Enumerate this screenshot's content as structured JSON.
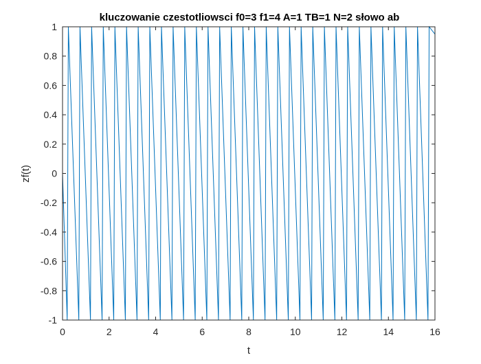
{
  "chart_data": {
    "type": "line",
    "title": "kluczowanie czestotliowsci  f0=3 f1=4 A=1 TB=1 N=2 słowo ab",
    "xlabel": "t",
    "ylabel": "zf(t)",
    "xlim": [
      0,
      16
    ],
    "ylim": [
      -1,
      1
    ],
    "xticks": [
      0,
      2,
      4,
      6,
      8,
      10,
      12,
      14,
      16
    ],
    "xtick_labels": [
      "0",
      "2",
      "4",
      "6",
      "8",
      "10",
      "12",
      "14",
      "16"
    ],
    "yticks": [
      -1,
      -0.8,
      -0.6,
      -0.4,
      -0.2,
      0,
      0.2,
      0.4,
      0.6,
      0.8,
      1
    ],
    "ytick_labels": [
      "-1",
      "-0.8",
      "-0.6",
      "-0.4",
      "-0.2",
      "0",
      "0.2",
      "0.4",
      "0.6",
      "0.8",
      "1"
    ],
    "grid": false,
    "box": true,
    "series": [
      {
        "color": "#0072bd",
        "sample_step": 0.1,
        "t_start": 0,
        "t_end": 16,
        "peaks_t": [
          0.25,
          0.75,
          1.25,
          1.75,
          2.25,
          2.75,
          3.25,
          3.75,
          4.25,
          4.75,
          5.25,
          5.75,
          6.25,
          6.75,
          7.25,
          7.75,
          8.25,
          8.75,
          9.25,
          9.75,
          10.25,
          10.75,
          11.25,
          11.75,
          12.25,
          12.75,
          13.25,
          13.75,
          14.25,
          14.75,
          15.25,
          15.75
        ],
        "peak_value": 1,
        "trough_value": -1
      }
    ]
  }
}
